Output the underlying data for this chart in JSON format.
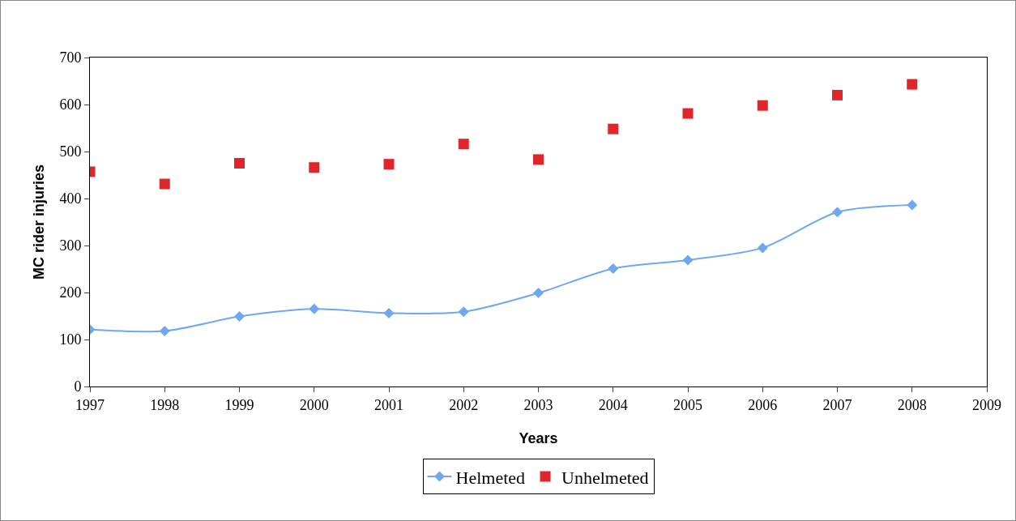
{
  "chart_data": {
    "type": "line",
    "xlabel": "Years",
    "ylabel": "MC rider injuries",
    "x": [
      1997,
      1998,
      1999,
      2000,
      2001,
      2002,
      2003,
      2004,
      2005,
      2006,
      2007,
      2008
    ],
    "series": [
      {
        "name": "Helmeted",
        "color": "#6fa8f0",
        "marker": "diamond",
        "values": [
          121,
          118,
          149,
          165,
          156,
          159,
          199,
          251,
          269,
          295,
          371,
          386
        ]
      },
      {
        "name": "Unhelmeted",
        "type": "scatter",
        "color": "#e0262b",
        "marker": "square",
        "values": [
          457,
          431,
          475,
          466,
          473,
          516,
          483,
          548,
          581,
          598,
          620,
          643
        ]
      }
    ],
    "xlim": [
      1997,
      2009
    ],
    "xticks": [
      1997,
      1998,
      1999,
      2000,
      2001,
      2002,
      2003,
      2004,
      2005,
      2006,
      2007,
      2008,
      2009
    ],
    "ylim": [
      0,
      700
    ],
    "yticks": [
      0,
      100,
      200,
      300,
      400,
      500,
      600,
      700
    ],
    "grid": false,
    "legend": "bottom"
  }
}
